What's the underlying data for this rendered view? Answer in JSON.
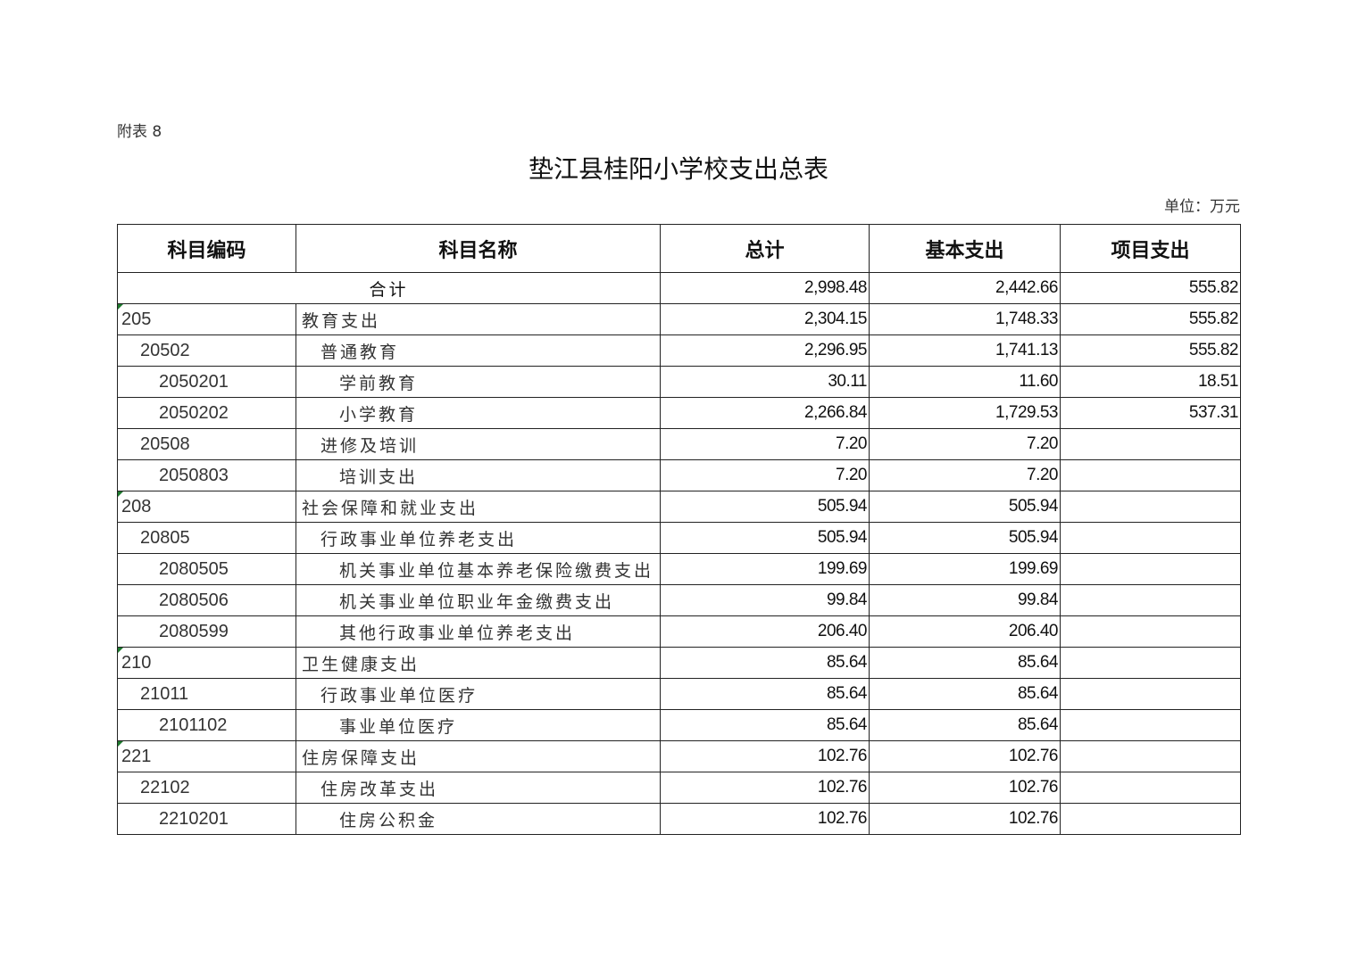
{
  "annex_label": "附表 8",
  "title": "垫江县桂阳小学校支出总表",
  "unit": "单位：万元",
  "columns": [
    "科目编码",
    "科目名称",
    "总计",
    "基本支出",
    "项目支出"
  ],
  "total_row": {
    "label": "合计",
    "total": "2,998.48",
    "basic": "2,442.66",
    "project": "555.82"
  },
  "rows": [
    {
      "code": "205",
      "name": "教育支出",
      "total": "2,304.15",
      "basic": "1,748.33",
      "project": "555.82",
      "level": 0
    },
    {
      "code": "20502",
      "name": "普通教育",
      "total": "2,296.95",
      "basic": "1,741.13",
      "project": "555.82",
      "level": 1
    },
    {
      "code": "2050201",
      "name": "学前教育",
      "total": "30.11",
      "basic": "11.60",
      "project": "18.51",
      "level": 2
    },
    {
      "code": "2050202",
      "name": "小学教育",
      "total": "2,266.84",
      "basic": "1,729.53",
      "project": "537.31",
      "level": 2
    },
    {
      "code": "20508",
      "name": "进修及培训",
      "total": "7.20",
      "basic": "7.20",
      "project": "",
      "level": 1
    },
    {
      "code": "2050803",
      "name": "培训支出",
      "total": "7.20",
      "basic": "7.20",
      "project": "",
      "level": 2
    },
    {
      "code": "208",
      "name": "社会保障和就业支出",
      "total": "505.94",
      "basic": "505.94",
      "project": "",
      "level": 0
    },
    {
      "code": "20805",
      "name": "行政事业单位养老支出",
      "total": "505.94",
      "basic": "505.94",
      "project": "",
      "level": 1
    },
    {
      "code": "2080505",
      "name": "机关事业单位基本养老保险缴费支出",
      "total": "199.69",
      "basic": "199.69",
      "project": "",
      "level": 2
    },
    {
      "code": "2080506",
      "name": "机关事业单位职业年金缴费支出",
      "total": "99.84",
      "basic": "99.84",
      "project": "",
      "level": 2
    },
    {
      "code": "2080599",
      "name": "其他行政事业单位养老支出",
      "total": "206.40",
      "basic": "206.40",
      "project": "",
      "level": 2
    },
    {
      "code": "210",
      "name": "卫生健康支出",
      "total": "85.64",
      "basic": "85.64",
      "project": "",
      "level": 0
    },
    {
      "code": "21011",
      "name": "行政事业单位医疗",
      "total": "85.64",
      "basic": "85.64",
      "project": "",
      "level": 1
    },
    {
      "code": "2101102",
      "name": "事业单位医疗",
      "total": "85.64",
      "basic": "85.64",
      "project": "",
      "level": 2
    },
    {
      "code": "221",
      "name": "住房保障支出",
      "total": "102.76",
      "basic": "102.76",
      "project": "",
      "level": 0
    },
    {
      "code": "22102",
      "name": "住房改革支出",
      "total": "102.76",
      "basic": "102.76",
      "project": "",
      "level": 1
    },
    {
      "code": "2210201",
      "name": "住房公积金",
      "total": "102.76",
      "basic": "102.76",
      "project": "",
      "level": 2
    }
  ],
  "colors": {
    "border": "#222222",
    "cell_marker": "#1e7a2e"
  }
}
